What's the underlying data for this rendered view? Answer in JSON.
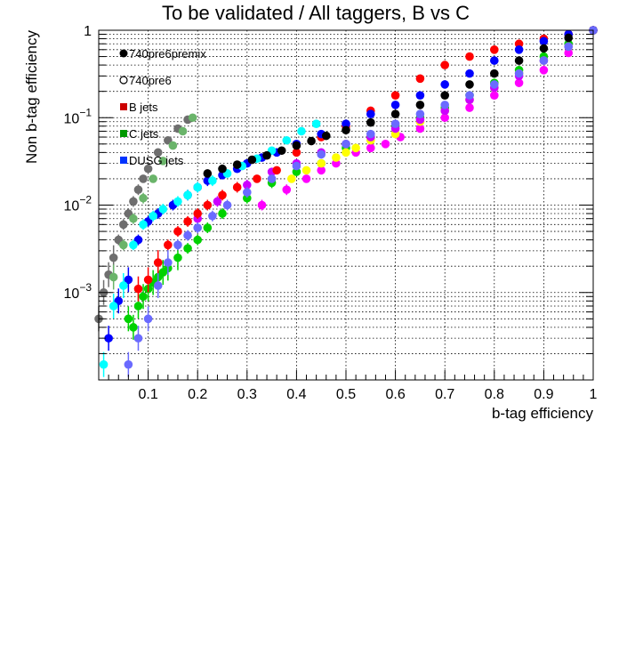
{
  "chart_data": {
    "type": "scatter",
    "title": "To be validated / All taggers, B vs C",
    "xlabel": "b-tag efficiency",
    "ylabel": "Non b-tag efficiency",
    "xlim": [
      0,
      1
    ],
    "ylim": [
      0.0001,
      1
    ],
    "yscale": "log",
    "grid": true,
    "x_tick_labels": [
      "0.1",
      "0.2",
      "0.3",
      "0.4",
      "0.5",
      "0.6",
      "0.7",
      "0.8",
      "0.9",
      "1"
    ],
    "y_tick_labels": [
      {
        "value": 1,
        "base": "1",
        "exp": ""
      },
      {
        "value": 0.1,
        "base": "10",
        "exp": "−1"
      },
      {
        "value": 0.01,
        "base": "10",
        "exp": "−2"
      },
      {
        "value": 0.001,
        "base": "10",
        "exp": "−3"
      }
    ],
    "legend_position": "top-left",
    "legend": [
      {
        "label": "740pre6premix",
        "marker": "filled-circle",
        "color": "#000000"
      },
      {
        "label": "740pre6",
        "marker": "open-circle",
        "color": "#000000"
      },
      {
        "label": "B jets",
        "marker": "square",
        "color": "#cc0000"
      },
      {
        "label": "C jets",
        "marker": "square",
        "color": "#009900"
      },
      {
        "label": "DUSG jets",
        "marker": "square",
        "color": "#0033ff"
      }
    ],
    "series": [
      {
        "color": "#00d200",
        "marker": "circle",
        "x": [
          0.06,
          0.07,
          0.08,
          0.09,
          0.1,
          0.11,
          0.12,
          0.13,
          0.14,
          0.16,
          0.18,
          0.2,
          0.22,
          0.25,
          0.3,
          0.35,
          0.4,
          0.45,
          0.5,
          0.55,
          0.6,
          0.65,
          0.7,
          0.75,
          0.8,
          0.85,
          0.9,
          0.95,
          1.0
        ],
        "y": [
          0.0005,
          0.0004,
          0.0007,
          0.0009,
          0.0011,
          0.0013,
          0.0015,
          0.0017,
          0.0019,
          0.0025,
          0.0032,
          0.004,
          0.0055,
          0.008,
          0.012,
          0.018,
          0.024,
          0.03,
          0.045,
          0.06,
          0.08,
          0.1,
          0.13,
          0.18,
          0.25,
          0.35,
          0.5,
          0.7,
          1.0
        ]
      },
      {
        "color": "#ff00ff",
        "marker": "circle",
        "x": [
          0.33,
          0.38,
          0.42,
          0.45,
          0.48,
          0.52,
          0.55,
          0.58,
          0.61,
          0.65,
          0.7,
          0.75,
          0.8,
          0.85,
          0.9,
          0.95,
          1.0
        ],
        "y": [
          0.01,
          0.015,
          0.02,
          0.025,
          0.03,
          0.04,
          0.045,
          0.05,
          0.06,
          0.075,
          0.1,
          0.13,
          0.18,
          0.25,
          0.35,
          0.55,
          1.0
        ]
      },
      {
        "color": "#ffff00",
        "marker": "circle",
        "x": [
          0.39,
          0.42,
          0.45,
          0.48,
          0.5,
          0.52,
          0.55,
          0.6,
          0.65,
          0.7,
          0.75,
          0.8,
          0.85,
          0.9,
          0.95,
          1.0
        ],
        "y": [
          0.02,
          0.025,
          0.03,
          0.035,
          0.04,
          0.045,
          0.055,
          0.065,
          0.09,
          0.12,
          0.16,
          0.22,
          0.32,
          0.45,
          0.65,
          1.0
        ]
      },
      {
        "color": "#cc00ff",
        "marker": "circle",
        "x": [
          0.2,
          0.24,
          0.3,
          0.35,
          0.4,
          0.45,
          0.5,
          0.55,
          0.6,
          0.65,
          0.7,
          0.75,
          0.8,
          0.85,
          0.9,
          0.95,
          1.0
        ],
        "y": [
          0.007,
          0.011,
          0.017,
          0.024,
          0.03,
          0.04,
          0.05,
          0.06,
          0.075,
          0.095,
          0.12,
          0.16,
          0.22,
          0.3,
          0.45,
          0.65,
          1.0
        ]
      },
      {
        "color": "#ff0000",
        "marker": "circle",
        "x": [
          0.08,
          0.1,
          0.12,
          0.14,
          0.16,
          0.18,
          0.2,
          0.22,
          0.25,
          0.28,
          0.32,
          0.36,
          0.4,
          0.45,
          0.5,
          0.55,
          0.6,
          0.65,
          0.7,
          0.75,
          0.8,
          0.85,
          0.9,
          0.95,
          1.0
        ],
        "y": [
          0.0011,
          0.0014,
          0.0022,
          0.0035,
          0.005,
          0.0065,
          0.008,
          0.01,
          0.013,
          0.016,
          0.02,
          0.025,
          0.04,
          0.06,
          0.08,
          0.12,
          0.18,
          0.28,
          0.4,
          0.5,
          0.6,
          0.7,
          0.8,
          0.9,
          1.0
        ]
      },
      {
        "color": "#0000ff",
        "marker": "circle",
        "x": [
          0.02,
          0.04,
          0.06,
          0.08,
          0.1,
          0.12,
          0.15,
          0.18,
          0.2,
          0.22,
          0.25,
          0.28,
          0.3,
          0.33,
          0.36,
          0.4,
          0.45,
          0.5,
          0.55,
          0.6,
          0.65,
          0.7,
          0.75,
          0.8,
          0.85,
          0.9,
          0.95,
          1.0
        ],
        "y": [
          0.0003,
          0.0008,
          0.0014,
          0.004,
          0.0065,
          0.008,
          0.01,
          0.013,
          0.016,
          0.019,
          0.022,
          0.026,
          0.03,
          0.035,
          0.04,
          0.05,
          0.065,
          0.085,
          0.11,
          0.14,
          0.18,
          0.24,
          0.32,
          0.45,
          0.6,
          0.75,
          0.9,
          1.0
        ]
      },
      {
        "color": "#00ffff",
        "marker": "circle",
        "x": [
          0.01,
          0.03,
          0.05,
          0.07,
          0.09,
          0.11,
          0.13,
          0.16,
          0.18,
          0.2,
          0.23,
          0.26,
          0.29,
          0.32,
          0.35,
          0.38,
          0.41,
          0.44
        ],
        "y": [
          0.00015,
          0.0007,
          0.0012,
          0.0035,
          0.006,
          0.0075,
          0.009,
          0.011,
          0.013,
          0.016,
          0.019,
          0.023,
          0.028,
          0.034,
          0.042,
          0.055,
          0.07,
          0.085
        ]
      },
      {
        "color": "#000000",
        "marker": "circle",
        "x": [
          0.22,
          0.25,
          0.28,
          0.31,
          0.34,
          0.37,
          0.4,
          0.43,
          0.46,
          0.5,
          0.55,
          0.6,
          0.65,
          0.7,
          0.75,
          0.8,
          0.85,
          0.9,
          0.95,
          1.0
        ],
        "y": [
          0.023,
          0.026,
          0.029,
          0.033,
          0.037,
          0.042,
          0.048,
          0.054,
          0.062,
          0.072,
          0.088,
          0.11,
          0.14,
          0.18,
          0.24,
          0.32,
          0.45,
          0.62,
          0.82,
          1.0
        ]
      },
      {
        "color": "#6a6aff",
        "marker": "circle",
        "x": [
          0.06,
          0.08,
          0.1,
          0.12,
          0.14,
          0.16,
          0.18,
          0.2,
          0.23,
          0.26,
          0.3,
          0.35,
          0.4,
          0.45,
          0.5,
          0.55,
          0.6,
          0.65,
          0.7,
          0.75,
          0.8,
          0.85,
          0.9,
          0.95,
          1.0
        ],
        "y": [
          0.00015,
          0.0003,
          0.0005,
          0.0012,
          0.0022,
          0.0035,
          0.0045,
          0.0055,
          0.0075,
          0.01,
          0.014,
          0.02,
          0.028,
          0.038,
          0.05,
          0.065,
          0.085,
          0.11,
          0.14,
          0.18,
          0.24,
          0.32,
          0.45,
          0.65,
          1.0
        ]
      },
      {
        "color": "#6e6e6e",
        "marker": "circle",
        "x": [
          0.0,
          0.01,
          0.02,
          0.03,
          0.04,
          0.05,
          0.06,
          0.07,
          0.08,
          0.09,
          0.1,
          0.12,
          0.14,
          0.16,
          0.18
        ],
        "y": [
          0.0005,
          0.001,
          0.0016,
          0.0025,
          0.004,
          0.006,
          0.008,
          0.011,
          0.015,
          0.02,
          0.026,
          0.04,
          0.055,
          0.075,
          0.095
        ]
      },
      {
        "color": "#6ab46a",
        "marker": "circle",
        "x": [
          0.03,
          0.05,
          0.07,
          0.09,
          0.11,
          0.13,
          0.15,
          0.17,
          0.19
        ],
        "y": [
          0.0015,
          0.0035,
          0.007,
          0.012,
          0.02,
          0.032,
          0.048,
          0.07,
          0.1
        ]
      }
    ]
  }
}
